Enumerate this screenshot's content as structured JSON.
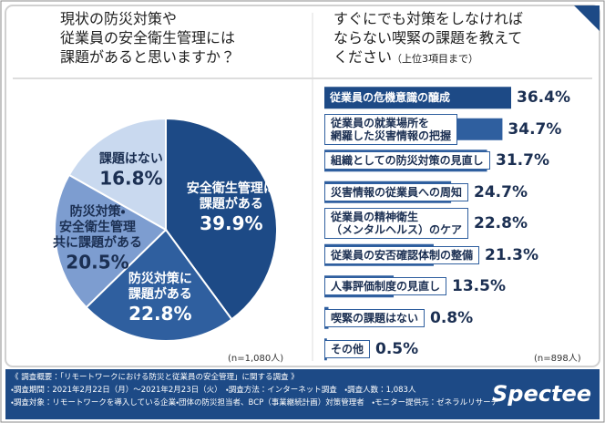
{
  "chart_data": [
    {
      "type": "pie",
      "title": "現状の防災対策や\n従業員の安全衛生管理には\n課題があると思いますか？",
      "categories": [
        "安全衛生管理に\n課題がある",
        "防災対策に\n課題がある",
        "防災対策・\n安全衛生管理\n共に課題がある",
        "課題はない"
      ],
      "values": [
        39.9,
        22.8,
        20.5,
        16.8
      ],
      "value_labels": [
        "39.9%",
        "22.8%",
        "20.5%",
        "16.8%"
      ],
      "colors": [
        "#1d4a86",
        "#2f5f9f",
        "#7d9dd0",
        "#c9d9ef"
      ],
      "note": "(n=1,080人)"
    },
    {
      "type": "bar",
      "orientation": "horizontal",
      "title": "すぐにでも対策をしなければ\nならない喫緊の課題を教えて\nください",
      "subtitle": "（上位3項目まで）",
      "categories": [
        "従業員の危機意識の醸成",
        "従業員の就業場所を\n網羅した災害情報の把握",
        "組織としての防災対策の見直し",
        "災害情報の従業員への周知",
        "従業員の精神衛生\n（メンタルヘルス）のケア",
        "従業員の安否確認体制の整備",
        "人事評価制度の見直し",
        "喫緊の課題はない",
        "その他"
      ],
      "values": [
        36.4,
        34.7,
        31.7,
        24.7,
        22.8,
        21.3,
        13.5,
        0.8,
        0.5
      ],
      "value_labels": [
        "36.4%",
        "34.7%",
        "31.7%",
        "24.7%",
        "22.8%",
        "21.3%",
        "13.5%",
        "0.8%",
        "0.5%"
      ],
      "color": "#2f5f9f",
      "note": "(n=898人)"
    }
  ],
  "footer": {
    "heading": "《 調査概要：「リモートワークにおける防災と従業員の安全管理」に関する調査 》",
    "lines": [
      "・調査期間：2021年2月22日（月）〜2021年2月23日（火）　・調査方法：インターネット調査　・調査人数：1,083人",
      "・調査対象：リモートワークを導入している企業・団体の防災担当者、BCP（事業継続計画）対策管理者　・モニター提供元：ゼネラルリサーチ"
    ],
    "logo": "Spectee"
  }
}
